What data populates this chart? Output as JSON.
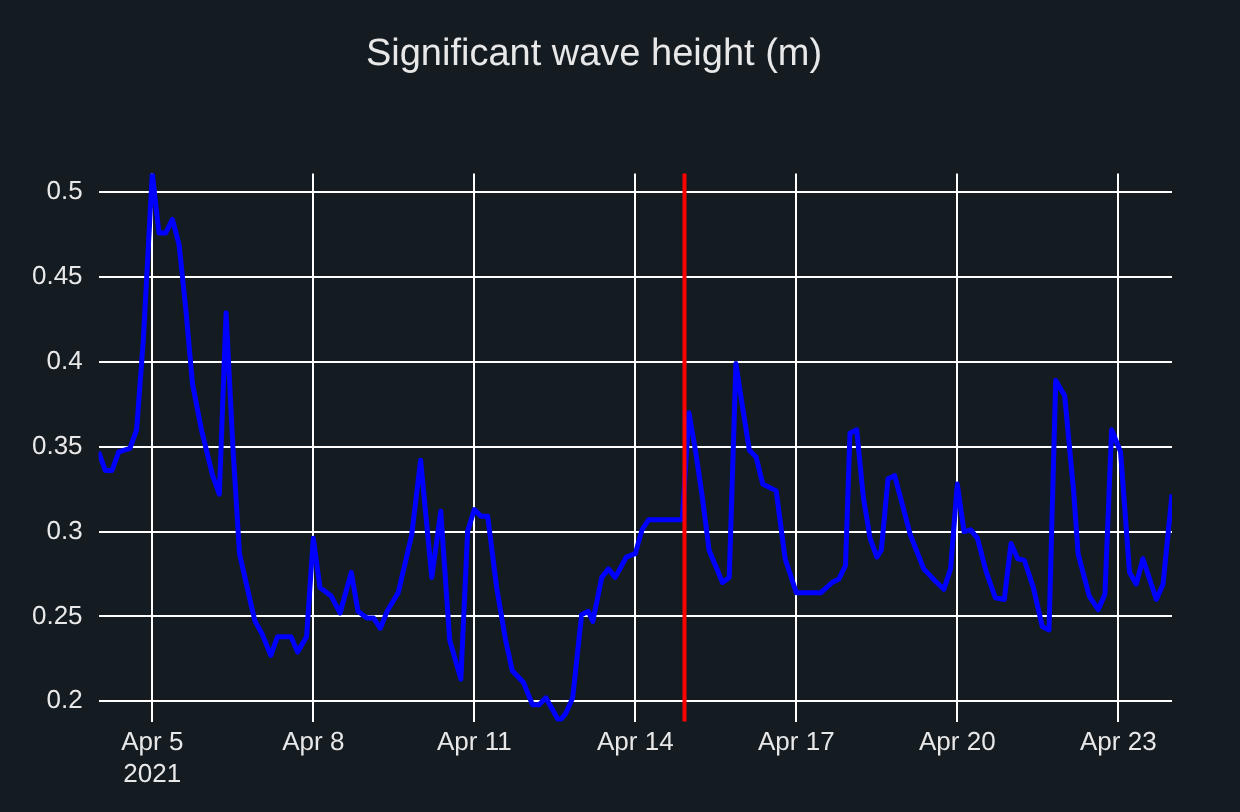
{
  "chart_data": {
    "type": "line",
    "title": "Significant wave height (m)",
    "x": [
      "2021-04-04T00:00",
      "2021-04-04T03:00",
      "2021-04-04T06:00",
      "2021-04-04T09:00",
      "2021-04-04T14:00",
      "2021-04-04T17:00",
      "2021-04-04T20:00",
      "2021-04-05T00:00",
      "2021-04-05T03:00",
      "2021-04-05T06:00",
      "2021-04-05T09:00",
      "2021-04-05T12:00",
      "2021-04-05T15:00",
      "2021-04-05T18:00",
      "2021-04-05T22:00",
      "2021-04-06T03:00",
      "2021-04-06T06:00",
      "2021-04-06T09:00",
      "2021-04-06T12:00",
      "2021-04-06T15:00",
      "2021-04-06T20:00",
      "2021-04-06T22:00",
      "2021-04-07T01:00",
      "2021-04-07T05:00",
      "2021-04-07T08:00",
      "2021-04-07T14:00",
      "2021-04-07T17:00",
      "2021-04-07T21:00",
      "2021-04-08T00:00",
      "2021-04-08T03:00",
      "2021-04-08T08:00",
      "2021-04-08T12:00",
      "2021-04-08T17:00",
      "2021-04-08T20:00",
      "2021-04-09T00:00",
      "2021-04-09T03:00",
      "2021-04-09T06:00",
      "2021-04-09T09:00",
      "2021-04-09T14:00",
      "2021-04-09T20:00",
      "2021-04-10T00:00",
      "2021-04-10T05:00",
      "2021-04-10T09:00",
      "2021-04-10T13:00",
      "2021-04-10T18:00",
      "2021-04-10T21:00",
      "2021-04-11T00:00",
      "2021-04-11T03:00",
      "2021-04-11T06:00",
      "2021-04-11T10:00",
      "2021-04-11T14:00",
      "2021-04-11T17:00",
      "2021-04-11T22:00",
      "2021-04-12T02:00",
      "2021-04-12T05:00",
      "2021-04-12T08:00",
      "2021-04-12T14:00",
      "2021-04-12T17:00",
      "2021-04-12T20:00",
      "2021-04-13T00:00",
      "2021-04-13T03:00",
      "2021-04-13T05:00",
      "2021-04-13T09:00",
      "2021-04-13T12:00",
      "2021-04-13T15:00",
      "2021-04-13T20:00",
      "2021-04-14T00:00",
      "2021-04-14T03:00",
      "2021-04-14T06:00",
      "2021-04-14T19:00",
      "2021-04-14T21:00",
      "2021-04-15T00:00",
      "2021-04-15T03:00",
      "2021-04-15T06:00",
      "2021-04-15T09:00",
      "2021-04-15T15:00",
      "2021-04-15T18:00",
      "2021-04-15T21:00",
      "2021-04-16T00:00",
      "2021-04-16T03:00",
      "2021-04-16T06:00",
      "2021-04-16T09:00",
      "2021-04-16T15:00",
      "2021-04-16T19:00",
      "2021-04-17T00:00",
      "2021-04-17T11:00",
      "2021-04-17T16:00",
      "2021-04-17T19:00",
      "2021-04-17T22:00",
      "2021-04-18T00:00",
      "2021-04-18T03:00",
      "2021-04-18T06:00",
      "2021-04-18T09:00",
      "2021-04-18T12:00",
      "2021-04-18T14:00",
      "2021-04-18T17:00",
      "2021-04-18T20:00",
      "2021-04-19T03:00",
      "2021-04-19T09:00",
      "2021-04-19T14:00",
      "2021-04-19T18:00",
      "2021-04-19T21:00",
      "2021-04-20T00:00",
      "2021-04-20T03:00",
      "2021-04-20T06:00",
      "2021-04-20T09:00",
      "2021-04-20T13:00",
      "2021-04-20T17:00",
      "2021-04-20T21:00",
      "2021-04-21T00:00",
      "2021-04-21T03:00",
      "2021-04-21T06:00",
      "2021-04-21T10:00",
      "2021-04-21T14:00",
      "2021-04-21T17:00",
      "2021-04-21T20:00",
      "2021-04-22T00:00",
      "2021-04-22T04:00",
      "2021-04-22T06:00",
      "2021-04-22T11:00",
      "2021-04-22T15:00",
      "2021-04-22T18:00",
      "2021-04-22T21:00",
      "2021-04-23T01:00",
      "2021-04-23T05:00",
      "2021-04-23T08:00",
      "2021-04-23T11:00",
      "2021-04-23T17:00",
      "2021-04-23T20:00",
      "2021-04-24T00:00"
    ],
    "series": [
      {
        "color": "#0000ff",
        "values": [
          0.347,
          0.336,
          0.336,
          0.347,
          0.349,
          0.36,
          0.413,
          0.511,
          0.476,
          0.476,
          0.484,
          0.469,
          0.431,
          0.387,
          0.36,
          0.333,
          0.322,
          0.429,
          0.351,
          0.287,
          0.258,
          0.247,
          0.24,
          0.227,
          0.238,
          0.238,
          0.229,
          0.238,
          0.296,
          0.267,
          0.262,
          0.252,
          0.276,
          0.253,
          0.249,
          0.249,
          0.243,
          0.253,
          0.264,
          0.298,
          0.342,
          0.273,
          0.312,
          0.236,
          0.213,
          0.3,
          0.313,
          0.309,
          0.309,
          0.267,
          0.236,
          0.218,
          0.211,
          0.198,
          0.198,
          0.202,
          0.188,
          0.193,
          0.202,
          0.251,
          0.253,
          0.247,
          0.273,
          0.278,
          0.273,
          0.285,
          0.287,
          0.301,
          0.307,
          0.307,
          0.307,
          0.37,
          0.347,
          0.32,
          0.289,
          0.27,
          0.273,
          0.399,
          0.373,
          0.348,
          0.344,
          0.328,
          0.324,
          0.284,
          0.264,
          0.264,
          0.27,
          0.272,
          0.28,
          0.358,
          0.36,
          0.32,
          0.296,
          0.285,
          0.289,
          0.331,
          0.333,
          0.298,
          0.278,
          0.271,
          0.266,
          0.278,
          0.328,
          0.3,
          0.301,
          0.296,
          0.276,
          0.261,
          0.26,
          0.293,
          0.284,
          0.283,
          0.267,
          0.244,
          0.242,
          0.389,
          0.38,
          0.324,
          0.287,
          0.262,
          0.254,
          0.263,
          0.36,
          0.347,
          0.276,
          0.269,
          0.284,
          0.26,
          0.269,
          0.322
        ]
      }
    ],
    "xlim": [
      "2021-04-04T00:00",
      "2021-04-24T00:00"
    ],
    "xticks": [
      {
        "value": "2021-04-05",
        "label": "Apr 5\n2021"
      },
      {
        "value": "2021-04-08",
        "label": "Apr 8"
      },
      {
        "value": "2021-04-11",
        "label": "Apr 11"
      },
      {
        "value": "2021-04-14",
        "label": "Apr 14"
      },
      {
        "value": "2021-04-17",
        "label": "Apr 17"
      },
      {
        "value": "2021-04-20",
        "label": "Apr 20"
      },
      {
        "value": "2021-04-23",
        "label": "Apr 23"
      }
    ],
    "ylim": [
      0.188,
      0.511
    ],
    "yticks": [
      0.2,
      0.25,
      0.3,
      0.35,
      0.4,
      0.45,
      0.5
    ],
    "ref_lines": [
      {
        "axis": "x",
        "value": "2021-04-14T22:00",
        "color": "#ff0000"
      }
    ],
    "grid": true,
    "legend": false,
    "marker": "none",
    "line_style": "solid"
  }
}
